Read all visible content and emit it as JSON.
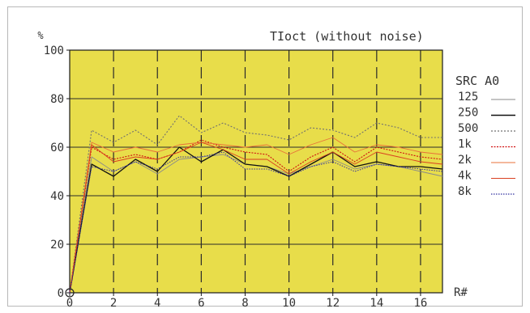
{
  "chart_data": {
    "type": "line",
    "title": "TIoct (without noise)",
    "ylabel": "%",
    "xlabel": "R#",
    "xlim": [
      0,
      17
    ],
    "ylim": [
      0,
      100
    ],
    "x_ticks": [
      "0",
      "2",
      "4",
      "6",
      "8",
      "10",
      "12",
      "14",
      "16"
    ],
    "y_ticks": [
      "0",
      "20",
      "40",
      "60",
      "80",
      "100"
    ],
    "legend_title": "SRC A0",
    "legend_position": "right",
    "plot_background": "#e8dd4a",
    "grid": true,
    "x": [
      0,
      1,
      2,
      3,
      4,
      5,
      6,
      7,
      8,
      9,
      10,
      11,
      12,
      13,
      14,
      15,
      16,
      17
    ],
    "series": [
      {
        "name": "125",
        "color": "#8a8a8a",
        "dash": "",
        "width": 0.9,
        "values": [
          0,
          56,
          50,
          54,
          49,
          55,
          56,
          57,
          53,
          52,
          49,
          52,
          55,
          51,
          53,
          52,
          50,
          48
        ]
      },
      {
        "name": "250",
        "color": "#111111",
        "dash": "",
        "width": 1.3,
        "values": [
          0,
          53,
          48,
          55,
          50,
          60,
          54,
          59,
          53,
          52,
          48,
          53,
          58,
          52,
          54,
          52,
          52,
          51
        ]
      },
      {
        "name": "500",
        "color": "#707070",
        "dash": "2,2",
        "width": 1.1,
        "values": [
          0,
          67,
          62,
          67,
          61,
          73,
          66,
          70,
          66,
          65,
          63,
          68,
          67,
          64,
          70,
          68,
          64,
          64
        ]
      },
      {
        "name": "1k",
        "color": "#d01010",
        "dash": "2,1.5",
        "width": 1.1,
        "values": [
          0,
          60,
          55,
          57,
          55,
          58,
          63,
          60,
          58,
          57,
          50,
          56,
          60,
          54,
          60,
          58,
          56,
          55
        ]
      },
      {
        "name": "2k",
        "color": "#e8703a",
        "dash": "",
        "width": 0.9,
        "values": [
          0,
          62,
          58,
          60,
          58,
          61,
          62,
          61,
          60,
          61,
          57,
          61,
          64,
          58,
          61,
          60,
          58,
          57
        ]
      },
      {
        "name": "4k",
        "color": "#d94020",
        "dash": "",
        "width": 0.9,
        "values": [
          0,
          61,
          54,
          56,
          55,
          58,
          62,
          59,
          55,
          55,
          49,
          54,
          58,
          53,
          58,
          56,
          54,
          53
        ]
      },
      {
        "name": "8k",
        "color": "#3030a0",
        "dash": "1.5,1.5",
        "width": 1.0,
        "values": [
          0,
          52,
          50,
          54,
          51,
          56,
          56,
          58,
          51,
          51,
          48,
          52,
          54,
          50,
          53,
          52,
          51,
          50
        ]
      }
    ]
  }
}
